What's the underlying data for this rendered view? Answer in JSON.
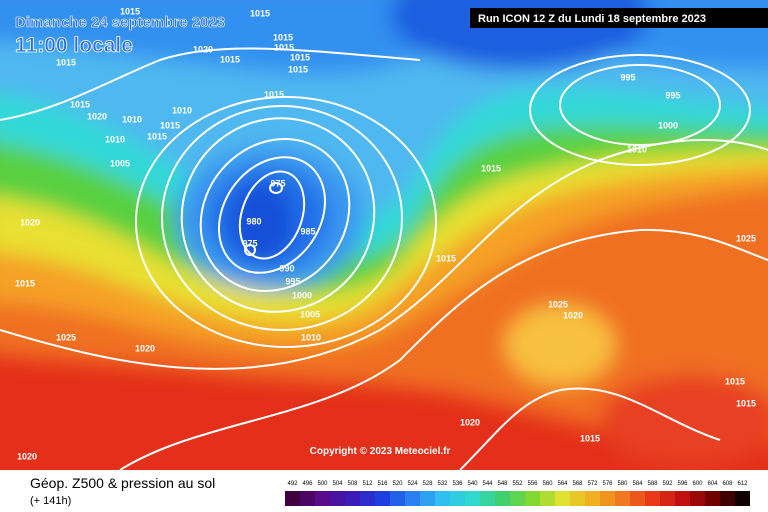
{
  "header": {
    "date": "Dimanche 24 septembre 2023",
    "time": "11:00 locale",
    "run": "Run ICON 12 Z du Lundi 18 septembre 2023"
  },
  "isobar_labels": [
    1015,
    1015,
    1015,
    1020,
    1015,
    1015,
    1015,
    1015,
    1015,
    1015,
    1015,
    1020,
    1010,
    1010,
    1015,
    1015,
    1010,
    1005,
    995,
    995,
    1000,
    1010,
    1015,
    975,
    980,
    985,
    975,
    990,
    995,
    1000,
    1005,
    1010,
    1020,
    1015,
    1025,
    1020,
    1015,
    1025,
    1025,
    1020,
    1015,
    1015,
    1020,
    1015,
    1020
  ],
  "copyright": "Copyright © 2023 Meteociel.fr",
  "footer": {
    "title": "Géop. Z500 & pression au sol",
    "lead": "(+ 141h)"
  },
  "scale": {
    "labels": [
      492,
      496,
      500,
      504,
      508,
      512,
      516,
      520,
      524,
      528,
      532,
      536,
      540,
      544,
      548,
      552,
      556,
      560,
      564,
      568,
      572,
      576,
      580,
      584,
      588,
      592,
      596,
      600,
      604,
      608,
      612
    ]
  }
}
